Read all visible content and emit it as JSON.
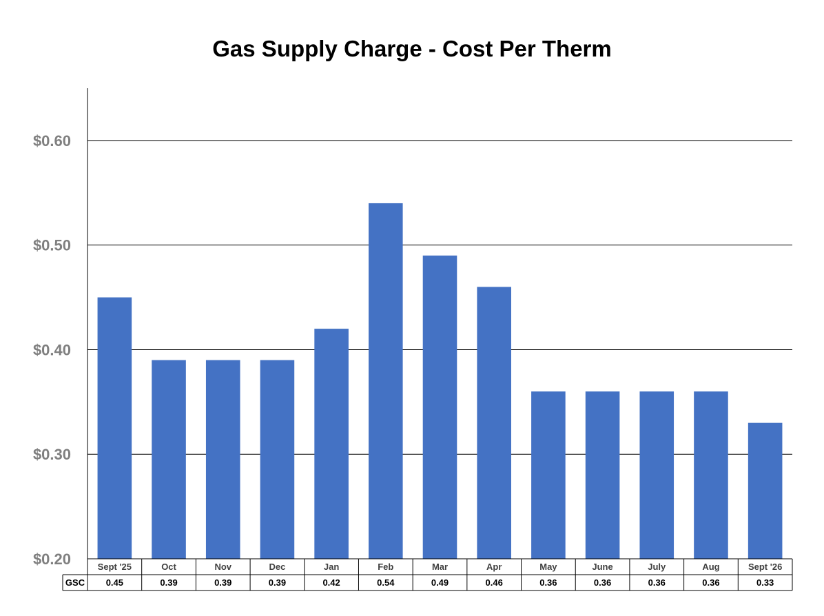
{
  "chart_data": {
    "type": "bar",
    "title": "Gas Supply Charge - Cost Per Therm",
    "categories": [
      "Sept '25",
      "Oct",
      "Nov",
      "Dec",
      "Jan",
      "Feb",
      "Mar",
      "Apr",
      "May",
      "June",
      "July",
      "Aug",
      "Sept '26"
    ],
    "series": [
      {
        "name": "GSC",
        "values": [
          0.45,
          0.39,
          0.39,
          0.39,
          0.42,
          0.54,
          0.49,
          0.46,
          0.36,
          0.36,
          0.36,
          0.36,
          0.33
        ],
        "color": "#4472c4"
      }
    ],
    "value_labels": [
      "0.45",
      "0.39",
      "0.39",
      "0.39",
      "0.42",
      "0.54",
      "0.49",
      "0.46",
      "0.36",
      "0.36",
      "0.36",
      "0.36",
      "0.33"
    ],
    "ylim": [
      0.2,
      0.65
    ],
    "yticks": [
      0.2,
      0.3,
      0.4,
      0.5,
      0.6
    ],
    "ytick_labels": [
      "$0.20",
      "$0.30",
      "$0.40",
      "$0.50",
      "$0.60"
    ],
    "grid": true,
    "data_table": true
  }
}
